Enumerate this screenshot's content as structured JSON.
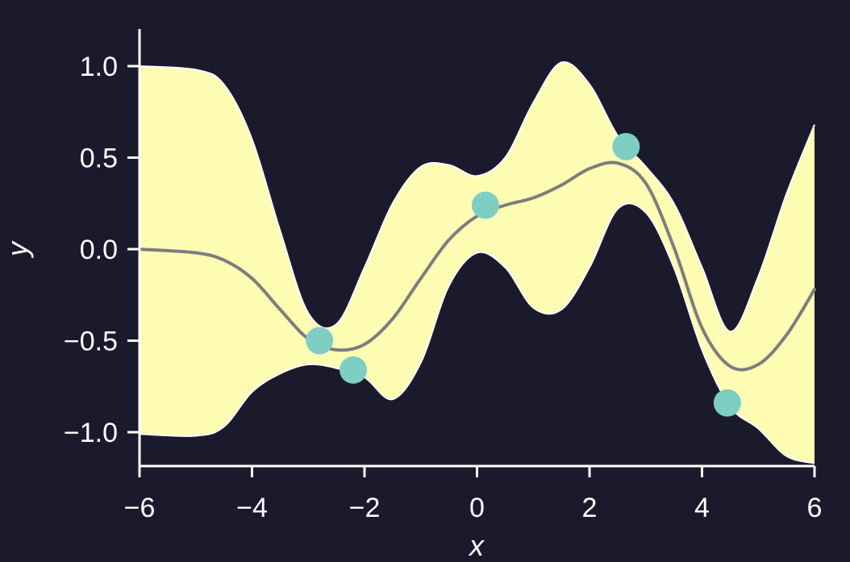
{
  "chart_data": {
    "type": "line",
    "xlabel": "x",
    "ylabel": "y",
    "xlim": [
      -6,
      6
    ],
    "ylim": [
      -1.2,
      1.2
    ],
    "x_ticks": [
      -6,
      -4,
      -2,
      0,
      2,
      4,
      6
    ],
    "x_tick_labels": [
      "−6",
      "−4",
      "−2",
      "0",
      "2",
      "4",
      "6"
    ],
    "y_ticks": [
      1.0,
      0.5,
      0.0,
      -0.5,
      -1.0
    ],
    "y_tick_labels": [
      "1.0",
      "0.5",
      "0.0",
      "−0.5",
      "−1.0"
    ],
    "grid": false,
    "legend": "none",
    "series": [
      {
        "type": "line",
        "x": [
          -6,
          -5,
          -4.5,
          -4,
          -3.5,
          -3,
          -2.5,
          -2,
          -1.5,
          -1,
          -0.5,
          0,
          0.5,
          1,
          1.5,
          2,
          2.5,
          3,
          3.5,
          4,
          4.5,
          5,
          5.5,
          6
        ],
        "values": [
          0.0,
          -0.02,
          -0.06,
          -0.16,
          -0.33,
          -0.49,
          -0.55,
          -0.52,
          -0.38,
          -0.16,
          0.05,
          0.18,
          0.24,
          0.28,
          0.35,
          0.44,
          0.47,
          0.36,
          0.01,
          -0.43,
          -0.64,
          -0.63,
          -0.47,
          -0.22
        ]
      },
      {
        "type": "band",
        "x": [
          -6,
          -5,
          -4.5,
          -4,
          -3.5,
          -3,
          -2.5,
          -2,
          -1.5,
          -1,
          -0.5,
          0,
          0.5,
          1,
          1.5,
          2,
          2.5,
          3,
          3.5,
          4,
          4.5,
          5,
          5.5,
          6
        ],
        "upper": [
          1.0,
          0.98,
          0.9,
          0.6,
          0.1,
          -0.35,
          -0.41,
          -0.1,
          0.25,
          0.45,
          0.46,
          0.4,
          0.5,
          0.8,
          1.02,
          0.9,
          0.62,
          0.45,
          0.25,
          -0.1,
          -0.45,
          -0.15,
          0.3,
          0.68
        ],
        "lower": [
          -1.01,
          -1.02,
          -0.97,
          -0.78,
          -0.68,
          -0.63,
          -0.65,
          -0.7,
          -0.82,
          -0.62,
          -0.2,
          -0.02,
          -0.1,
          -0.32,
          -0.33,
          -0.1,
          0.22,
          0.2,
          -0.1,
          -0.55,
          -0.86,
          -0.98,
          -1.13,
          -1.17
        ]
      },
      {
        "type": "scatter",
        "x": [
          -2.8,
          -2.2,
          0.15,
          2.65,
          4.45
        ],
        "values": [
          -0.5,
          -0.66,
          0.24,
          0.56,
          -0.84
        ]
      }
    ]
  },
  "colors": {
    "background": "#1b1a2d",
    "band": "#fffdb3",
    "band_edge": "#ffffff",
    "mean_line": "#7d7d7d",
    "points": "#7fcec4",
    "axis": "#ffffff",
    "text": "#ffffff"
  }
}
